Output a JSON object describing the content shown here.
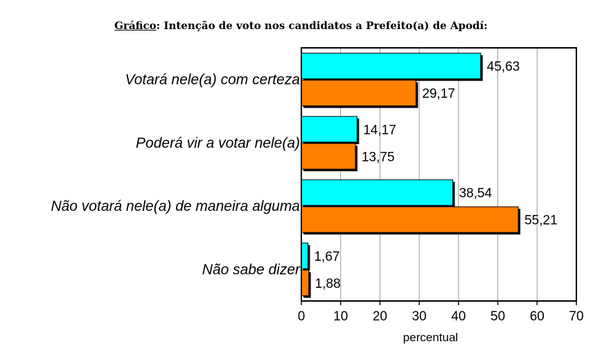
{
  "title": {
    "prefix": "Gráfico",
    "sep": ":",
    "text": " Intenção de voto nos candidatos a Prefeito(a) de Apodí:"
  },
  "chart_data": {
    "type": "bar",
    "orientation": "horizontal",
    "categories": [
      "Votará nele(a) com certeza",
      "Poderá vir a votar nele(a)",
      "Não votará nele(a) de maneira alguma",
      "Não sabe dizer"
    ],
    "series": [
      {
        "values": [
          45.63,
          14.17,
          38.54,
          1.67
        ],
        "labels": [
          "45,63",
          "14,17",
          "38,54",
          "1,67"
        ],
        "color": "#00FFFF"
      },
      {
        "values": [
          29.17,
          13.75,
          55.21,
          1.88
        ],
        "labels": [
          "29,17",
          "13,75",
          "55,21",
          "1,88"
        ],
        "color": "#FF8000"
      }
    ],
    "xlim": [
      0,
      70
    ],
    "xticks": [
      0,
      10,
      20,
      30,
      40,
      50,
      60,
      70
    ],
    "xlabel": "percentual",
    "grid": true,
    "legend": "none"
  }
}
